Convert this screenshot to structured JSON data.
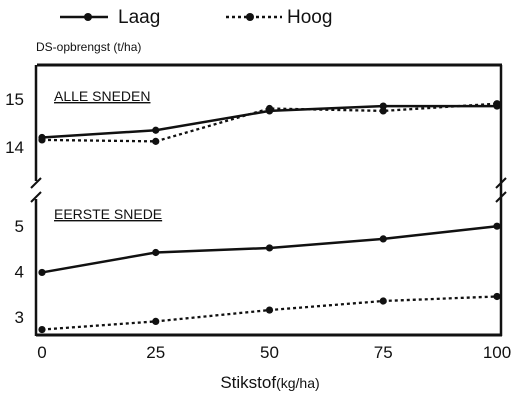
{
  "chart_data": [
    {
      "type": "line",
      "panel": "top",
      "annotation": "ALLE SNEDEN",
      "ylabel": "DS-opbrengst (t/ha)",
      "xlabel": "Stikstof",
      "xlabel_unit": "(kg/ha)",
      "x": [
        0,
        25,
        50,
        75,
        100
      ],
      "xticks": [
        "0",
        "25",
        "50",
        "75",
        "100"
      ],
      "ylim": [
        13.3,
        15.7
      ],
      "yticks": [
        "14",
        "15"
      ],
      "series": [
        {
          "name": "Laag",
          "style": "solid",
          "values": [
            14.2,
            14.35,
            14.75,
            14.85,
            14.85
          ]
        },
        {
          "name": "Hoog",
          "style": "dotted",
          "values": [
            14.15,
            14.12,
            14.8,
            14.75,
            14.9
          ]
        }
      ]
    },
    {
      "type": "line",
      "panel": "bottom",
      "annotation": "EERSTE SNEDE",
      "x": [
        0,
        25,
        50,
        75,
        100
      ],
      "ylim": [
        2.6,
        5.6
      ],
      "yticks": [
        "3",
        "4",
        "5"
      ],
      "series": [
        {
          "name": "Laag",
          "style": "solid",
          "values": [
            3.98,
            4.42,
            4.52,
            4.72,
            5.0
          ]
        },
        {
          "name": "Hoog",
          "style": "dotted",
          "values": [
            2.72,
            2.9,
            3.15,
            3.35,
            3.45
          ]
        }
      ]
    }
  ],
  "legend": [
    {
      "label": "Laag",
      "style": "solid"
    },
    {
      "label": "Hoog",
      "style": "dotted"
    }
  ],
  "colors": {
    "ink": "#111111",
    "background": "#ffffff"
  }
}
